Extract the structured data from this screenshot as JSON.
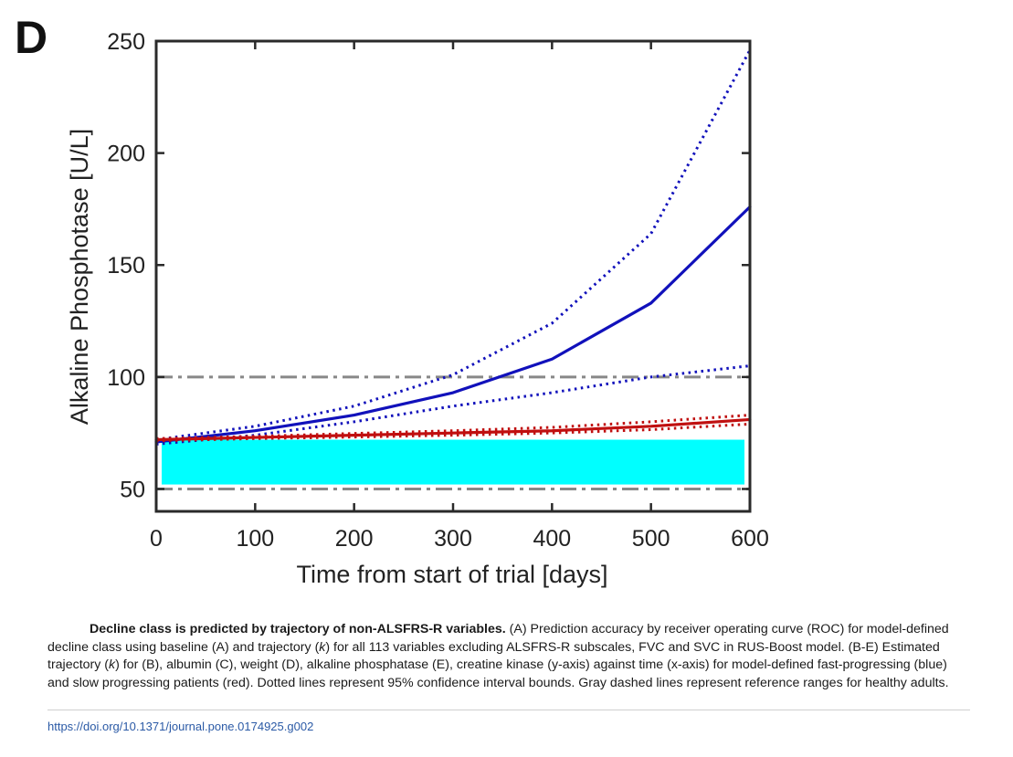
{
  "panel_label": "D",
  "chart_data": {
    "type": "line",
    "xlabel": "Time from start of trial [days]",
    "ylabel": "Alkaline Phosphotase [U/L]",
    "xlim": [
      0,
      600
    ],
    "ylim": [
      40,
      250
    ],
    "xticks": [
      0,
      100,
      200,
      300,
      400,
      500,
      600
    ],
    "yticks": [
      50,
      100,
      150,
      200,
      250
    ],
    "grid": false,
    "legend": "none",
    "x": [
      0,
      100,
      200,
      300,
      400,
      500,
      600
    ],
    "series": [
      {
        "role": "fast-progressing estimate",
        "color": "#1111bb",
        "style": "solid",
        "values": [
          71,
          76,
          83,
          93,
          108,
          133,
          176
        ]
      },
      {
        "role": "fast-progressing upper 95% CI",
        "color": "#1111bb",
        "style": "dotted",
        "values": [
          72,
          78,
          87,
          101,
          124,
          164,
          246
        ]
      },
      {
        "role": "fast-progressing lower 95% CI",
        "color": "#1111bb",
        "style": "dotted",
        "values": [
          70,
          74,
          80,
          87,
          93,
          100,
          105
        ]
      },
      {
        "role": "slow-progressing estimate",
        "color": "#c01010",
        "style": "solid",
        "values": [
          72,
          73,
          74,
          75,
          76,
          78,
          81
        ]
      },
      {
        "role": "slow-progressing upper 95% CI",
        "color": "#c01010",
        "style": "dotted",
        "values": [
          72.5,
          73.5,
          74.8,
          76,
          77.5,
          80,
          83
        ]
      },
      {
        "role": "slow-progressing lower 95% CI",
        "color": "#c01010",
        "style": "dotted",
        "values": [
          71.5,
          72.5,
          73.2,
          74,
          75,
          76.5,
          79
        ]
      }
    ],
    "reference_lines": [
      {
        "y": 100,
        "color": "#888888",
        "style": "dash-dot"
      },
      {
        "y": 50,
        "color": "#888888",
        "style": "dash-dot"
      }
    ],
    "redaction_band": {
      "color": "#00ffff",
      "x_range": [
        0,
        600
      ],
      "y_range": [
        52,
        72
      ]
    }
  },
  "caption": {
    "lead": "Decline class is predicted by trajectory of non-ALSFRS-R variables.",
    "body_1": " (A) Prediction accuracy by receiver operating curve (ROC) for model-defined decline class using baseline (A) and trajectory (",
    "k1": "k",
    "body_2": ") for all 113 variables excluding ALSFRS-R subscales, FVC and SVC in RUS-Boost model. (B-E) Estimated trajectory (",
    "k2": "k",
    "body_3": ") for (B), albumin (C), weight (D), alkaline phosphatase (E), creatine kinase (y-axis) against time (x-axis) for model-defined fast-progressing (blue) and slow progressing patients (red). Dotted lines represent 95% confidence interval bounds. Gray dashed lines represent reference ranges for healthy adults."
  },
  "doi": "https://doi.org/10.1371/journal.pone.0174925.g002"
}
